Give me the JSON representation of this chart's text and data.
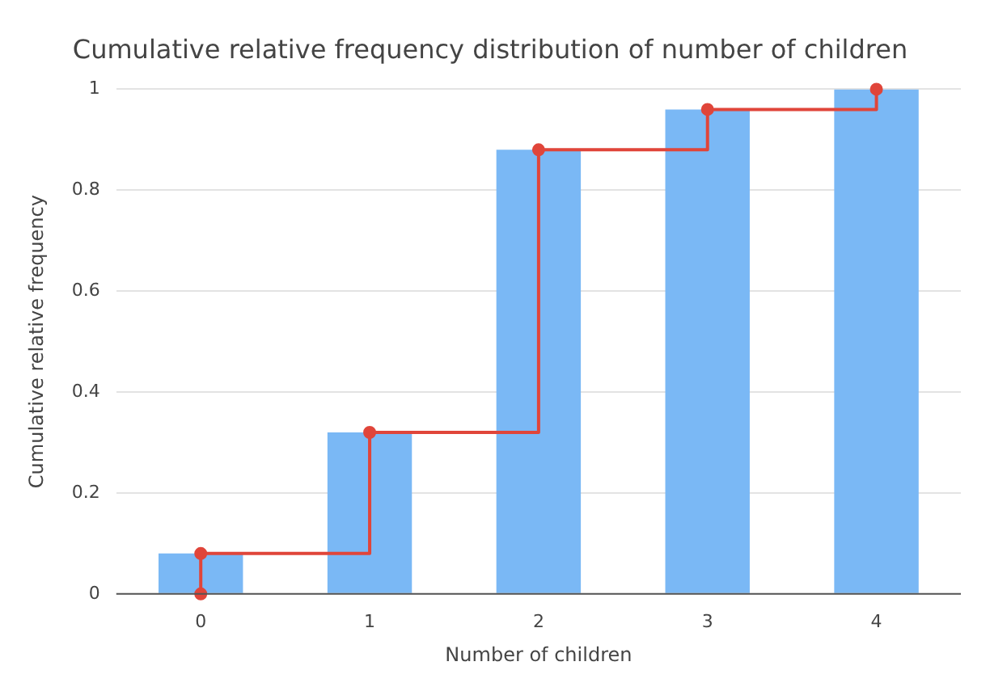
{
  "chart_data": {
    "type": "bar",
    "title": "Cumulative relative frequency distribution of number of children",
    "xlabel": "Number of children",
    "ylabel": "Cumulative relative frequency",
    "categories": [
      "0",
      "1",
      "2",
      "3",
      "4"
    ],
    "series": [
      {
        "color": "#7ab8f5",
        "values": [
          0.08,
          0.32,
          0.88,
          0.96,
          1
        ]
      },
      {
        "type": "step",
        "color": "#e0453a",
        "x": [
          "0",
          "0",
          "1",
          "2",
          "3",
          "4"
        ],
        "values": [
          0,
          0.08,
          0.32,
          0.88,
          0.96,
          1
        ],
        "marker": "circle"
      }
    ],
    "ylim": [
      0,
      1
    ],
    "yticks": [
      0,
      0.2,
      0.4,
      0.6,
      0.8,
      1
    ],
    "grid": "y",
    "legend": false
  }
}
